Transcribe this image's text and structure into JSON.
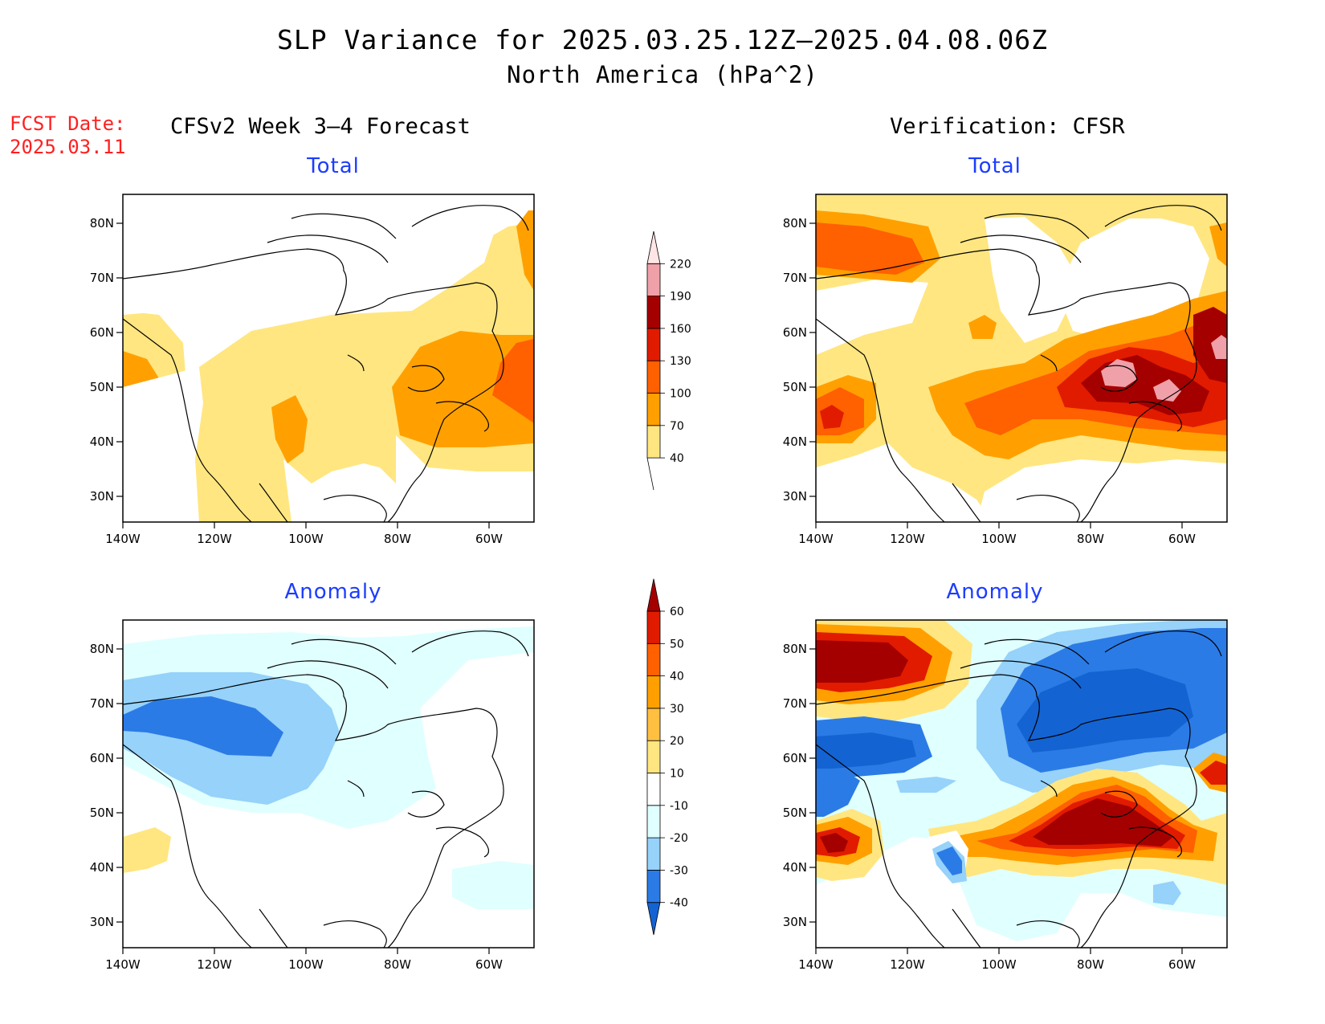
{
  "title": "SLP Variance for 2025.03.25.12Z–2025.04.08.06Z",
  "subtitle": "North America (hPa^2)",
  "fcst_date": {
    "label": "FCST Date:",
    "value": "2025.03.11"
  },
  "headings": {
    "left": "CFSv2 Week 3–4 Forecast",
    "right": "Verification: CFSR"
  },
  "panels": [
    {
      "id": "fcst-total",
      "title": "Total"
    },
    {
      "id": "verif-total",
      "title": "Total"
    },
    {
      "id": "fcst-anomaly",
      "title": "Anomaly"
    },
    {
      "id": "verif-anomaly",
      "title": "Anomaly"
    }
  ],
  "axes": {
    "lon_ticks": [
      "140W",
      "120W",
      "100W",
      "80W",
      "60W"
    ],
    "lat_ticks": [
      "80N",
      "70N",
      "60N",
      "50N",
      "40N",
      "30N"
    ]
  },
  "colorbar_total": {
    "levels": [
      "40",
      "70",
      "100",
      "130",
      "160",
      "190",
      "220"
    ],
    "colors": [
      "#ffe680",
      "#ffa000",
      "#ff6000",
      "#e11b00",
      "#a50000",
      "#f0a0a8",
      "#ffe5e5"
    ]
  },
  "colorbar_anomaly": {
    "levels": [
      "-40",
      "-30",
      "-20",
      "-10",
      "10",
      "20",
      "30",
      "40",
      "50",
      "60"
    ],
    "colors": [
      "#1463d2",
      "#2b7be6",
      "#96d2fa",
      "#e0ffff",
      "#ffffff",
      "#ffe680",
      "#ffbf40",
      "#ffa000",
      "#ff6000",
      "#e11b00",
      "#a50000"
    ]
  }
}
